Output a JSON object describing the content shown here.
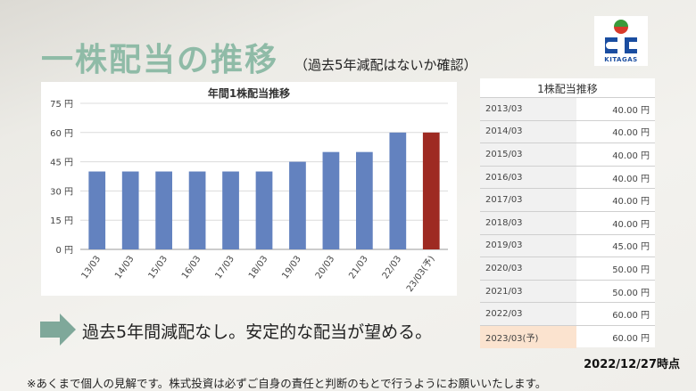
{
  "page": {
    "title": "一株配当の推移",
    "subtitle": "（過去5年減配はないか確認）",
    "conclusion": "過去5年間減配なし。安定的な配当が望める。",
    "date_stamp": "2022/12/27時点",
    "disclaimer": "※あくまで個人の見解です。株式投資は必ずご自身の責任と判断のもとで行うようにお願いいたします。",
    "logo_text": "KITAGAS"
  },
  "table": {
    "title": "1株配当推移",
    "rows": [
      {
        "period": "2013/03",
        "value": "40.00 円"
      },
      {
        "period": "2014/03",
        "value": "40.00 円"
      },
      {
        "period": "2015/03",
        "value": "40.00 円"
      },
      {
        "period": "2016/03",
        "value": "40.00 円"
      },
      {
        "period": "2017/03",
        "value": "40.00 円"
      },
      {
        "period": "2018/03",
        "value": "40.00 円"
      },
      {
        "period": "2019/03",
        "value": "45.00 円"
      },
      {
        "period": "2020/03",
        "value": "50.00 円"
      },
      {
        "period": "2021/03",
        "value": "50.00 円"
      },
      {
        "period": "2022/03",
        "value": "60.00 円"
      },
      {
        "period": "2023/03(予)",
        "value": "60.00 円"
      }
    ]
  },
  "chart_data": {
    "type": "bar",
    "title": "年間1株配当推移",
    "categories": [
      "13/03",
      "14/03",
      "15/03",
      "16/03",
      "17/03",
      "18/03",
      "19/03",
      "20/03",
      "21/03",
      "22/03",
      "23/03(予)"
    ],
    "values": [
      40,
      40,
      40,
      40,
      40,
      40,
      45,
      50,
      50,
      60,
      60
    ],
    "ylim": [
      0,
      75
    ],
    "yticks": [
      "0 円",
      "15 円",
      "30 円",
      "45 円",
      "60 円",
      "75 円"
    ],
    "ytick_values": [
      0,
      15,
      30,
      45,
      60,
      75
    ],
    "colors": {
      "actual": "#6382bf",
      "forecast": "#9e2a22"
    },
    "grid": true
  }
}
